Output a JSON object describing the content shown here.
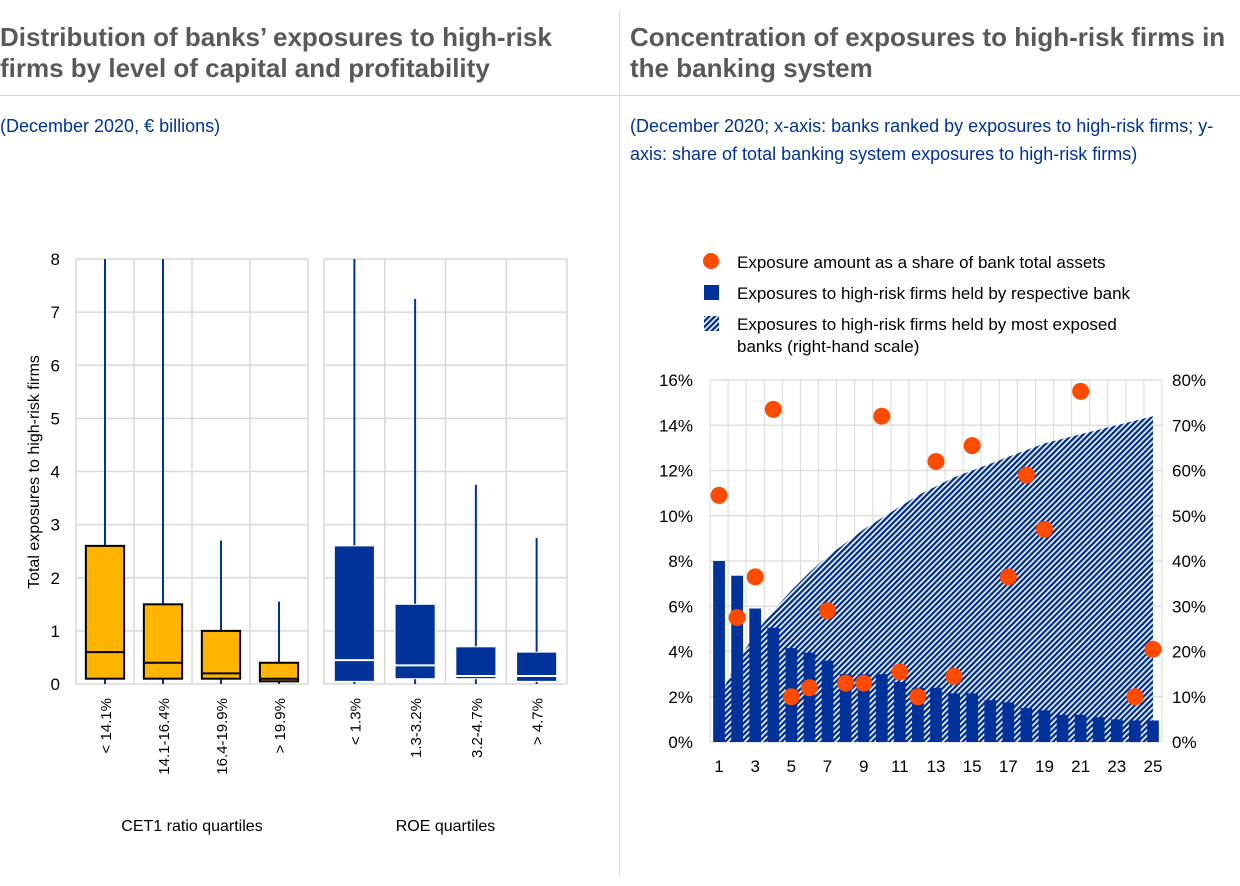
{
  "left_panel": {
    "title": "Distribution of banks’ exposures to high-risk firms by level of capital and profitability",
    "subtitle": "(December 2020, € billions)"
  },
  "right_panel": {
    "title": "Concentration of exposures to high-risk firms in the banking system",
    "subtitle": "(December 2020; x-axis: banks ranked by exposures to high-risk firms; y-axis: share of total banking system exposures to high-risk firms)"
  },
  "colors": {
    "cet1": "#ffb400",
    "roe": "#003299",
    "scatter": "#ff4b00",
    "grid": "#d9d9d9",
    "text": "#000000"
  },
  "chart_data": [
    {
      "type": "boxplot",
      "title": "Distribution of banks’ exposures to high-risk firms by level of capital and profitability",
      "ylabel": "Total exposures to high-risk firms",
      "ylim": [
        0,
        8
      ],
      "yticks": [
        0,
        1,
        2,
        3,
        4,
        5,
        6,
        7,
        8
      ],
      "grid": true,
      "groups": [
        {
          "name": "CET1 ratio quartiles",
          "color": "#ffb400",
          "categories": [
            "< 14.1%",
            "14.1-16.4%",
            "16.4-19.9%",
            "> 19.9%"
          ],
          "boxes": [
            {
              "low": 0.0,
              "q1": 0.1,
              "median": 0.6,
              "q3": 2.6,
              "high": 8.0
            },
            {
              "low": 0.0,
              "q1": 0.1,
              "median": 0.4,
              "q3": 1.5,
              "high": 8.0
            },
            {
              "low": 0.0,
              "q1": 0.1,
              "median": 0.2,
              "q3": 1.0,
              "high": 2.7
            },
            {
              "low": 0.0,
              "q1": 0.05,
              "median": 0.1,
              "q3": 0.4,
              "high": 1.55
            }
          ]
        },
        {
          "name": "ROE quartiles",
          "color": "#003299",
          "categories": [
            "< 1.3%",
            "1.3-3.2%",
            "3.2-4.7%",
            "> 4.7%"
          ],
          "boxes": [
            {
              "low": 0.0,
              "q1": 0.05,
              "median": 0.45,
              "q3": 2.6,
              "high": 8.0
            },
            {
              "low": 0.0,
              "q1": 0.1,
              "median": 0.35,
              "q3": 1.5,
              "high": 7.25
            },
            {
              "low": 0.0,
              "q1": 0.1,
              "median": 0.15,
              "q3": 0.7,
              "high": 3.75
            },
            {
              "low": 0.0,
              "q1": 0.05,
              "median": 0.15,
              "q3": 0.6,
              "high": 2.75
            }
          ]
        }
      ]
    },
    {
      "type": "bar+scatter+area",
      "title": "Concentration of exposures to high-risk firms in the banking system",
      "x": [
        1,
        2,
        3,
        4,
        5,
        6,
        7,
        8,
        9,
        10,
        11,
        12,
        13,
        14,
        15,
        16,
        17,
        18,
        19,
        20,
        21,
        22,
        23,
        24,
        25
      ],
      "xticks": [
        1,
        3,
        5,
        7,
        9,
        11,
        13,
        15,
        17,
        19,
        21,
        23,
        25
      ],
      "ylim_left": [
        0,
        16
      ],
      "yticks_left": [
        "0%",
        "2%",
        "4%",
        "6%",
        "8%",
        "10%",
        "12%",
        "14%",
        "16%"
      ],
      "ylim_right": [
        0,
        80
      ],
      "yticks_right": [
        "0%",
        "10%",
        "20%",
        "30%",
        "40%",
        "50%",
        "60%",
        "70%",
        "80%"
      ],
      "grid": true,
      "legend": "top",
      "series": [
        {
          "name": "Exposure amount as a share of bank total assets",
          "type": "scatter",
          "axis": "left",
          "color": "#ff4b00",
          "values": [
            10.9,
            5.5,
            7.3,
            14.7,
            2.0,
            2.4,
            5.8,
            2.6,
            2.6,
            14.4,
            3.1,
            2.0,
            12.4,
            2.9,
            13.1,
            null,
            7.3,
            11.8,
            9.4,
            null,
            15.5,
            null,
            null,
            2.0,
            4.1
          ]
        },
        {
          "name": "Exposures to high-risk firms held by respective bank",
          "type": "bar",
          "axis": "left",
          "color": "#003299",
          "values": [
            8.0,
            7.35,
            5.9,
            5.05,
            4.15,
            3.95,
            3.6,
            3.0,
            3.0,
            3.0,
            2.65,
            2.4,
            2.4,
            2.15,
            2.15,
            1.85,
            1.75,
            1.5,
            1.4,
            1.2,
            1.2,
            1.1,
            1.0,
            0.95,
            0.95
          ]
        },
        {
          "name": "Exposures to high-risk firms held by most exposed banks (right-hand scale)",
          "type": "area",
          "axis": "right",
          "color": "#003299",
          "pattern": "hatched",
          "values": [
            10,
            17.5,
            24,
            29,
            33.5,
            37.5,
            41,
            44,
            47,
            49.5,
            52,
            54.5,
            56.5,
            58.5,
            60,
            61.5,
            63,
            64.5,
            66,
            67,
            68,
            69,
            70,
            71,
            72
          ]
        }
      ]
    }
  ]
}
